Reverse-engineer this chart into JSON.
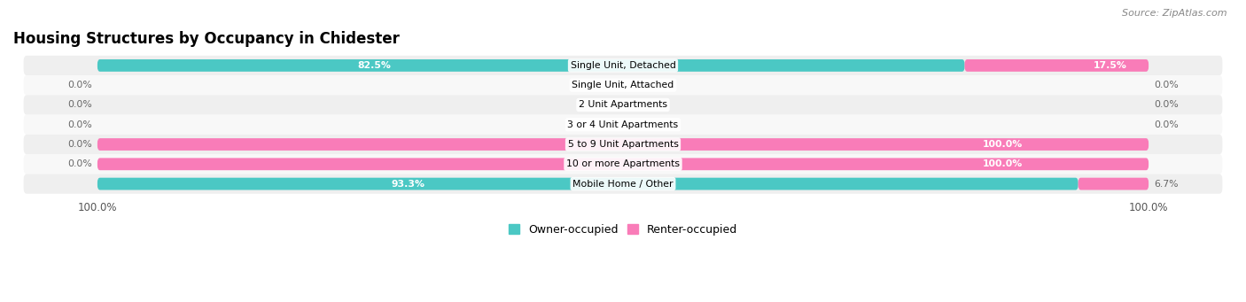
{
  "title": "Housing Structures by Occupancy in Chidester",
  "source": "Source: ZipAtlas.com",
  "categories": [
    "Single Unit, Detached",
    "Single Unit, Attached",
    "2 Unit Apartments",
    "3 or 4 Unit Apartments",
    "5 to 9 Unit Apartments",
    "10 or more Apartments",
    "Mobile Home / Other"
  ],
  "owner_values": [
    82.5,
    0.0,
    0.0,
    0.0,
    0.0,
    0.0,
    93.3
  ],
  "renter_values": [
    17.5,
    0.0,
    0.0,
    0.0,
    100.0,
    100.0,
    6.7
  ],
  "owner_color": "#4bc8c4",
  "renter_color": "#f97cb8",
  "row_bg_even": "#efefef",
  "row_bg_odd": "#f8f8f8",
  "label_left_pct": [
    "82.5%",
    "0.0%",
    "0.0%",
    "0.0%",
    "0.0%",
    "0.0%",
    "93.3%"
  ],
  "label_right_pct": [
    "17.5%",
    "0.0%",
    "0.0%",
    "0.0%",
    "100.0%",
    "100.0%",
    "6.7%"
  ],
  "figsize": [
    14.06,
    3.41
  ],
  "dpi": 100
}
